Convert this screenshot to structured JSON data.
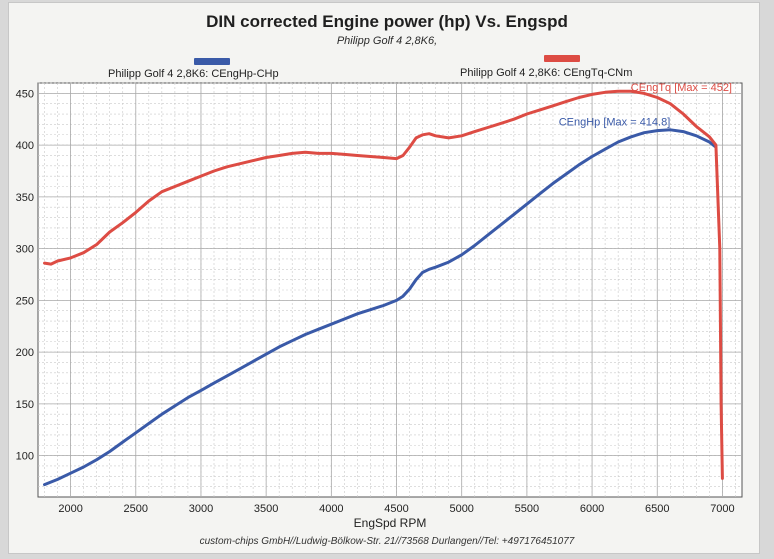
{
  "chart_data": {
    "type": "line",
    "title": "DIN corrected Engine power (hp) Vs. Engspd",
    "subtitle": "Philipp Golf 4 2,8K6,",
    "xlabel": "EngSpd RPM",
    "ylabel": "",
    "xlim": [
      1750,
      7150
    ],
    "ylim": [
      60,
      460
    ],
    "x_ticks": [
      2000,
      2500,
      3000,
      3500,
      4000,
      4500,
      5000,
      5500,
      6000,
      6500,
      7000
    ],
    "y_ticks": [
      100,
      150,
      200,
      250,
      300,
      350,
      400,
      450
    ],
    "grid": true,
    "legend_position": "top",
    "series": [
      {
        "name": "Philipp Golf 4 2,8K6: CEngHp-CHp",
        "color": "#3a5aa8",
        "annotation": "CEngHp [Max = 414.8]",
        "x": [
          1800,
          1900,
          2000,
          2100,
          2200,
          2300,
          2400,
          2500,
          2600,
          2700,
          2800,
          2900,
          3000,
          3100,
          3200,
          3300,
          3400,
          3500,
          3600,
          3700,
          3800,
          3900,
          4000,
          4100,
          4200,
          4300,
          4400,
          4500,
          4550,
          4600,
          4650,
          4700,
          4750,
          4800,
          4900,
          5000,
          5100,
          5200,
          5300,
          5400,
          5500,
          5600,
          5700,
          5800,
          5900,
          6000,
          6100,
          6200,
          6300,
          6400,
          6500,
          6600,
          6700,
          6800,
          6900,
          6950
        ],
        "values": [
          72,
          77,
          83,
          89,
          96,
          104,
          113,
          122,
          131,
          140,
          148,
          156,
          163,
          170,
          177,
          184,
          191,
          198,
          205,
          211,
          217,
          222,
          227,
          232,
          237,
          241,
          245,
          250,
          254,
          261,
          270,
          277,
          280,
          282,
          287,
          294,
          303,
          313,
          323,
          333,
          343,
          353,
          363,
          372,
          381,
          389,
          396,
          403,
          408,
          412,
          414,
          414.8,
          413,
          409,
          403,
          398
        ]
      },
      {
        "name": "Philipp Golf 4 2,8K6: CEngTq-CNm",
        "color": "#dd4c44",
        "annotation": "CEngTq [Max = 452]",
        "x": [
          1800,
          1850,
          1900,
          2000,
          2100,
          2200,
          2300,
          2400,
          2500,
          2600,
          2700,
          2800,
          2900,
          3000,
          3100,
          3200,
          3300,
          3400,
          3500,
          3600,
          3700,
          3800,
          3900,
          4000,
          4100,
          4200,
          4300,
          4400,
          4500,
          4550,
          4600,
          4650,
          4700,
          4750,
          4800,
          4900,
          5000,
          5100,
          5200,
          5300,
          5400,
          5500,
          5600,
          5700,
          5800,
          5900,
          6000,
          6100,
          6200,
          6300,
          6400,
          6500,
          6600,
          6700,
          6800,
          6900,
          6950,
          6980,
          6990,
          7000
        ],
        "values": [
          286,
          285,
          288,
          291,
          296,
          304,
          316,
          325,
          335,
          346,
          355,
          360,
          365,
          370,
          375,
          379,
          382,
          385,
          388,
          390,
          392,
          393,
          392,
          392,
          391,
          390,
          389,
          388,
          387,
          390,
          398,
          407,
          410,
          411,
          409,
          407,
          409,
          413,
          417,
          421,
          425,
          430,
          434,
          438,
          442,
          446,
          449,
          451,
          452,
          452,
          450,
          446,
          440,
          430,
          418,
          408,
          400,
          300,
          150,
          78
        ]
      }
    ]
  },
  "footer": "custom-chips GmbH//Ludwig-Bölkow-Str. 21//73568 Durlangen//Tel: +497176451077"
}
